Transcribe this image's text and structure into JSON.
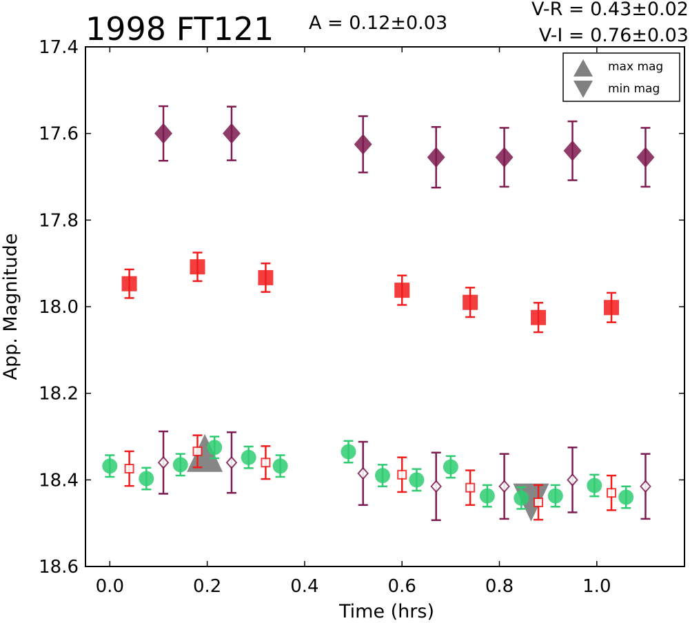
{
  "chart_data": {
    "type": "scatter",
    "title": "1998 FT121",
    "annotation_amplitude": "A  = 0.12±0.03",
    "annotation_vr": "V-R = 0.43±0.02",
    "annotation_vi": "V-I  = 0.76±0.03",
    "xlabel": "Time (hrs)",
    "ylabel": "App. Magnitude",
    "xlim": [
      -0.05,
      1.18
    ],
    "ylim": [
      18.6,
      17.4
    ],
    "y_inverted": true,
    "xticks": [
      "0.0",
      "0.2",
      "0.4",
      "0.6",
      "0.8",
      "1.0"
    ],
    "yticks": [
      "17.4",
      "17.6",
      "17.8",
      "18.0",
      "18.2",
      "18.4",
      "18.6"
    ],
    "grid": false,
    "legend_position": "top-right",
    "colors": {
      "green": "#2ecc71",
      "red": "#f21b1b",
      "purple": "#7d1a4f",
      "marker_gray": "#808080"
    },
    "series": [
      {
        "marker": "diamond-filled",
        "color": "#7d1a4f",
        "points": [
          {
            "x": 0.11,
            "y": 17.6,
            "err": 0.063
          },
          {
            "x": 0.25,
            "y": 17.6,
            "err": 0.062
          },
          {
            "x": 0.52,
            "y": 17.625,
            "err": 0.065
          },
          {
            "x": 0.67,
            "y": 17.655,
            "err": 0.07
          },
          {
            "x": 0.81,
            "y": 17.655,
            "err": 0.068
          },
          {
            "x": 0.95,
            "y": 17.64,
            "err": 0.068
          },
          {
            "x": 1.1,
            "y": 17.655,
            "err": 0.068
          }
        ]
      },
      {
        "marker": "square-filled",
        "color": "#f21b1b",
        "points": [
          {
            "x": 0.04,
            "y": 17.947,
            "err": 0.033
          },
          {
            "x": 0.18,
            "y": 17.908,
            "err": 0.033
          },
          {
            "x": 0.32,
            "y": 17.933,
            "err": 0.033
          },
          {
            "x": 0.6,
            "y": 17.962,
            "err": 0.034
          },
          {
            "x": 0.74,
            "y": 17.99,
            "err": 0.034
          },
          {
            "x": 0.88,
            "y": 18.025,
            "err": 0.034
          },
          {
            "x": 1.03,
            "y": 18.002,
            "err": 0.034
          }
        ]
      },
      {
        "marker": "circle-filled",
        "color": "#2ecc71",
        "points": [
          {
            "x": 0.0,
            "y": 18.368,
            "err": 0.025
          },
          {
            "x": 0.075,
            "y": 18.397,
            "err": 0.025
          },
          {
            "x": 0.145,
            "y": 18.365,
            "err": 0.025
          },
          {
            "x": 0.215,
            "y": 18.325,
            "err": 0.025
          },
          {
            "x": 0.285,
            "y": 18.348,
            "err": 0.025
          },
          {
            "x": 0.35,
            "y": 18.368,
            "err": 0.025
          },
          {
            "x": 0.49,
            "y": 18.335,
            "err": 0.025
          },
          {
            "x": 0.56,
            "y": 18.39,
            "err": 0.025
          },
          {
            "x": 0.63,
            "y": 18.4,
            "err": 0.025
          },
          {
            "x": 0.7,
            "y": 18.37,
            "err": 0.025
          },
          {
            "x": 0.775,
            "y": 18.437,
            "err": 0.025
          },
          {
            "x": 0.845,
            "y": 18.442,
            "err": 0.025
          },
          {
            "x": 0.915,
            "y": 18.437,
            "err": 0.025
          },
          {
            "x": 0.995,
            "y": 18.413,
            "err": 0.025
          },
          {
            "x": 1.06,
            "y": 18.44,
            "err": 0.025
          }
        ]
      },
      {
        "marker": "square-open",
        "color": "#f21b1b",
        "points": [
          {
            "x": 0.04,
            "y": 18.374,
            "err": 0.04
          },
          {
            "x": 0.18,
            "y": 18.334,
            "err": 0.037
          },
          {
            "x": 0.32,
            "y": 18.36,
            "err": 0.038
          },
          {
            "x": 0.6,
            "y": 18.388,
            "err": 0.04
          },
          {
            "x": 0.74,
            "y": 18.418,
            "err": 0.04
          },
          {
            "x": 0.88,
            "y": 18.452,
            "err": 0.04
          },
          {
            "x": 1.03,
            "y": 18.43,
            "err": 0.04
          }
        ]
      },
      {
        "marker": "diamond-open",
        "color": "#7d1a4f",
        "points": [
          {
            "x": 0.11,
            "y": 18.36,
            "err": 0.072
          },
          {
            "x": 0.25,
            "y": 18.36,
            "err": 0.07
          },
          {
            "x": 0.52,
            "y": 18.385,
            "err": 0.073
          },
          {
            "x": 0.67,
            "y": 18.415,
            "err": 0.078
          },
          {
            "x": 0.81,
            "y": 18.415,
            "err": 0.075
          },
          {
            "x": 0.95,
            "y": 18.4,
            "err": 0.075
          },
          {
            "x": 1.1,
            "y": 18.415,
            "err": 0.075
          }
        ]
      }
    ],
    "extrema_markers": [
      {
        "marker": "triangle-up",
        "x": 0.195,
        "y": 18.345
      },
      {
        "marker": "triangle-down",
        "x": 0.865,
        "y": 18.445
      }
    ],
    "legend": [
      {
        "label": "max mag",
        "marker": "triangle-up"
      },
      {
        "label": "min mag",
        "marker": "triangle-down"
      }
    ]
  }
}
